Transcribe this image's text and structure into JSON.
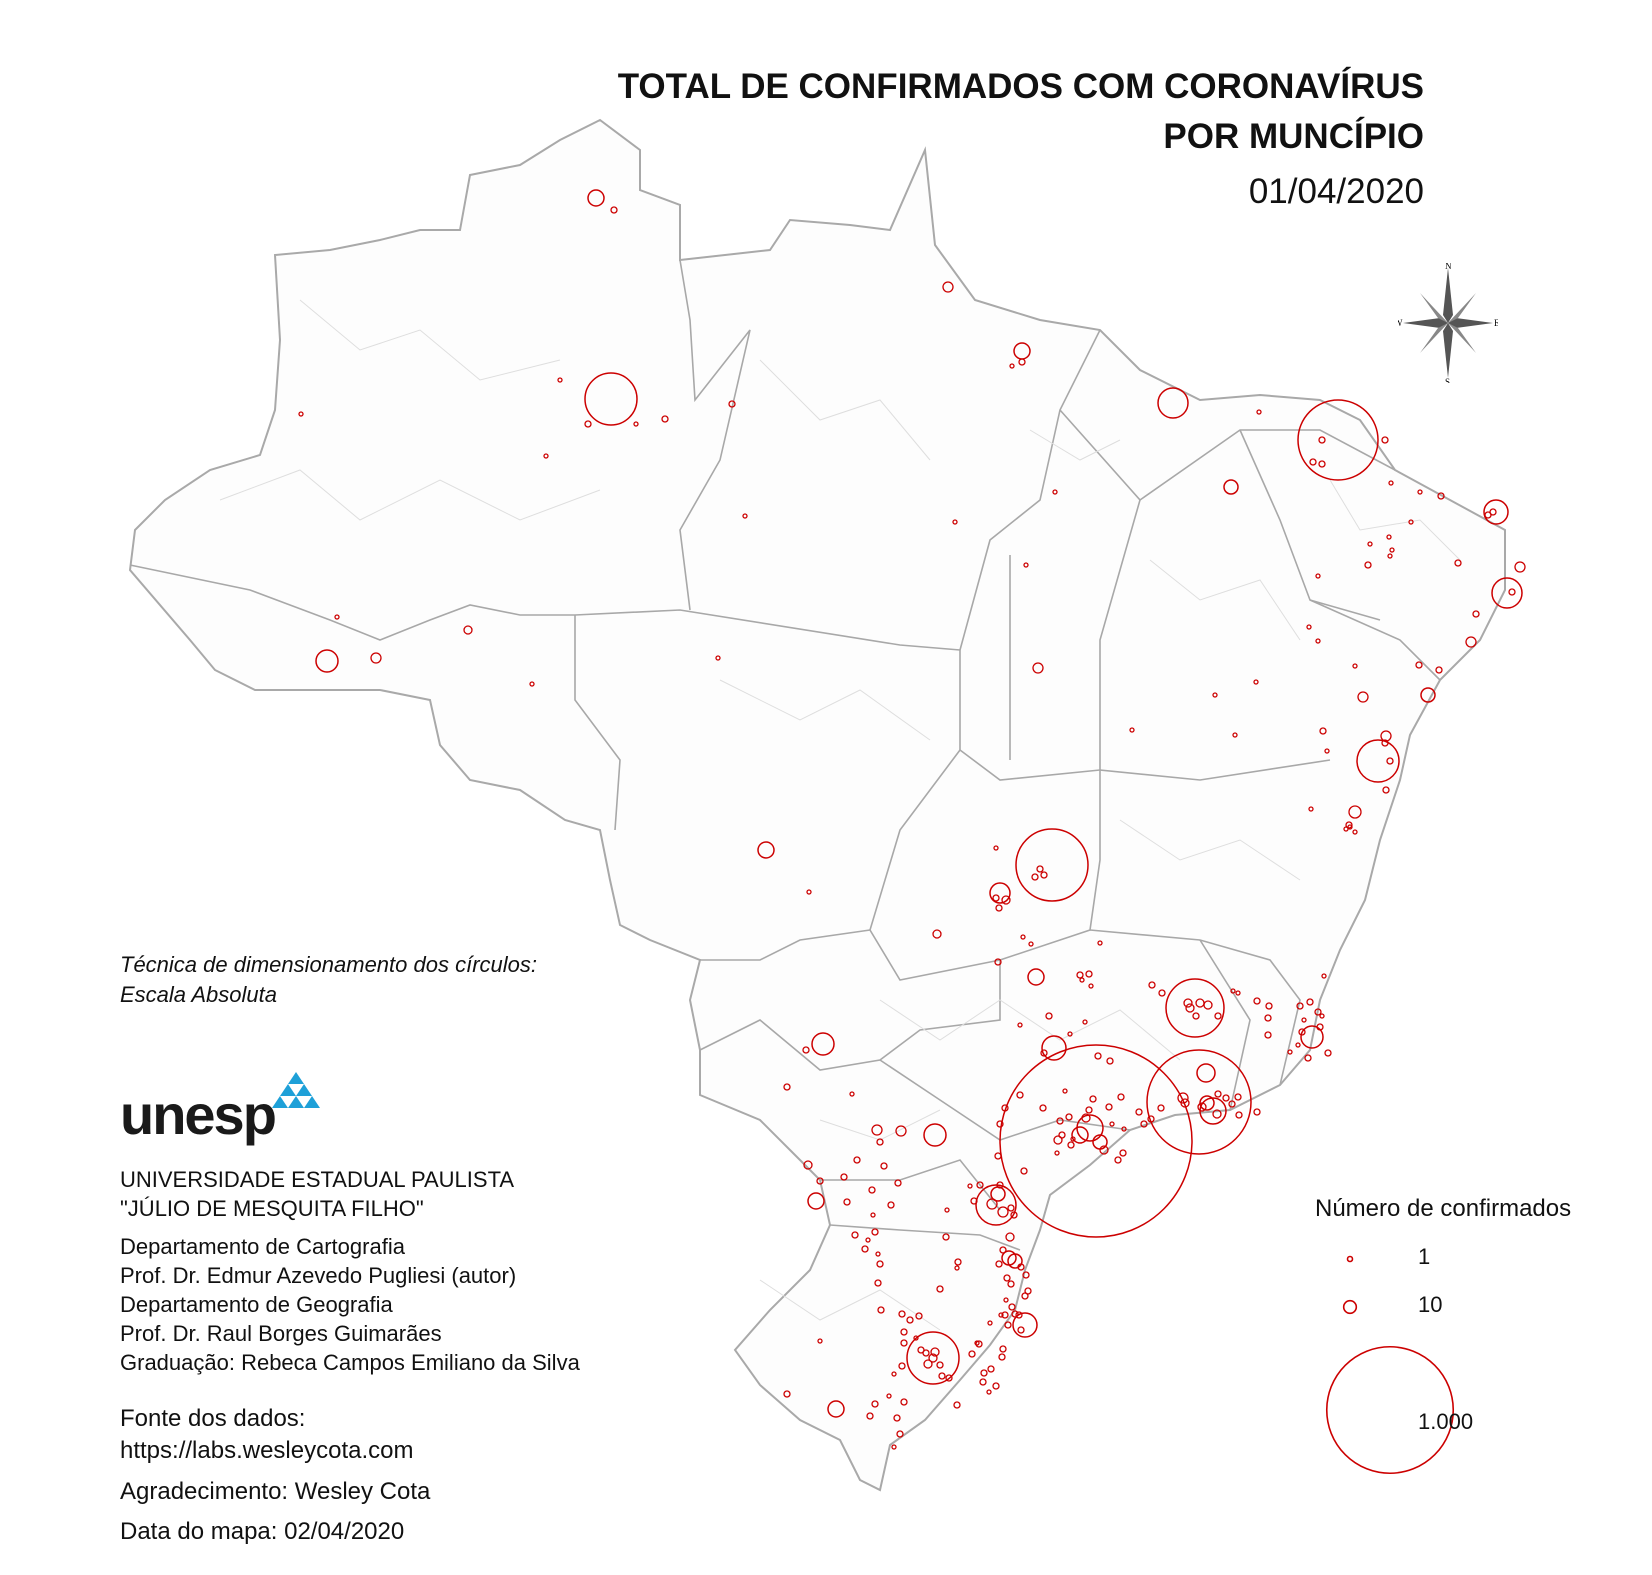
{
  "title": {
    "line1": "TOTAL DE CONFIRMADOS COM CORONAVÍRUS",
    "line2": "POR MUNCÍPIO",
    "date": "01/04/2020"
  },
  "compass": {
    "n": "N",
    "s": "S",
    "e": "E",
    "w": "W"
  },
  "technique": {
    "line1": "Técnica de dimensionamento dos círculos:",
    "line2": "Escala Absoluta"
  },
  "logo": {
    "text": "unesp",
    "accent_color": "#1ea0d8"
  },
  "institution": {
    "line1": "UNIVERSIDADE ESTADUAL PAULISTA",
    "line2": "\"JÚLIO DE MESQUITA FILHO\""
  },
  "authors": [
    "Departamento de Cartografia",
    "Prof. Dr. Edmur Azevedo Pugliesi (autor)",
    "Departamento de Geografia",
    "Prof. Dr. Raul Borges Guimarães",
    "Graduação: Rebeca Campos Emiliano da Silva"
  ],
  "source": {
    "label": "Fonte dos dados:",
    "url": "https://labs.wesleycota.com"
  },
  "thanks": "Agradecimento: Wesley Cota",
  "map_date": "Data do mapa: 02/04/2020",
  "legend": {
    "title": "Número de confirmados",
    "entries": [
      {
        "label": "1",
        "value": 1
      },
      {
        "label": "10",
        "value": 10
      },
      {
        "label": "1.000",
        "value": 1000
      }
    ]
  },
  "colors": {
    "circle": "#cc0000",
    "boundary": "#c8c8c8",
    "state_border": "#a8a8a8"
  }
}
